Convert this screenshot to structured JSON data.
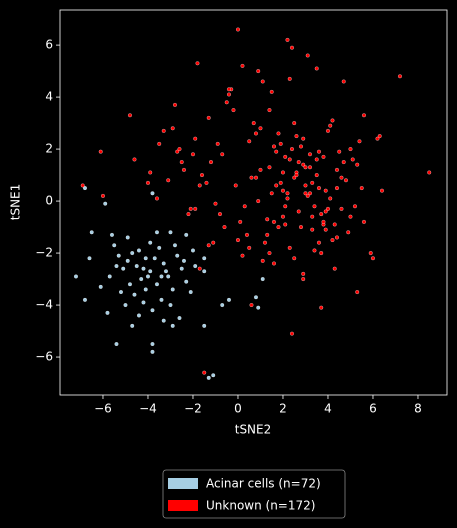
{
  "chart_data": {
    "type": "scatter",
    "xlabel": "tSNE2",
    "ylabel": "tSNE1",
    "xlim": [
      -7.91,
      9.29
    ],
    "ylim": [
      -7.46,
      7.35
    ],
    "xticks": [
      {
        "value": -6,
        "label": "−6"
      },
      {
        "value": -4,
        "label": "−4"
      },
      {
        "value": -2,
        "label": "−2"
      },
      0,
      2,
      4,
      6,
      8
    ],
    "yticks": [
      {
        "value": -6,
        "label": "−6"
      },
      {
        "value": -4,
        "label": "−4"
      },
      {
        "value": -2,
        "label": "−2"
      },
      0,
      2,
      4,
      6
    ],
    "legend": "bottom",
    "series": [
      {
        "name": "Acinar cells (n=72)",
        "color": "#a6cee3",
        "x": [
          -7.2,
          -6.8,
          -6.8,
          -5.9,
          -6.5,
          -6.6,
          -6.1,
          -5.8,
          -5.4,
          -3.8,
          -3.8,
          -3.8,
          -2.3,
          -1.5,
          -1.5,
          -1.5,
          -0.7,
          -0.4,
          -1.1,
          0.8,
          1.1,
          0.9,
          -4.7,
          -2.9,
          -5.6,
          -5.5,
          -5.3,
          -5.1,
          -4.9,
          -4.7,
          -4.5,
          -4.3,
          -4.1,
          -3.9,
          -3.7,
          -3.5,
          -3.3,
          -3.1,
          -2.9,
          -2.7,
          -2.5,
          -2.3,
          -2.1,
          -4.6,
          -4.2,
          -3.8,
          -3.4,
          -3.0,
          -4.8,
          -5.2,
          -5.0,
          -4.4,
          -3.6,
          -3.2,
          -2.8,
          -2.0,
          -3.9,
          -4.1,
          -3.6,
          -4.4,
          -3.0,
          -2.6,
          -3.3,
          -1.9,
          -5.7,
          -4.9,
          -4.0,
          -3.4,
          -2.4,
          -5.4,
          -1.3,
          -4.2
        ],
        "y": [
          -2.9,
          -3.8,
          0.5,
          -0.1,
          -1.2,
          -2.2,
          -3.3,
          -4.3,
          -5.5,
          0.3,
          -5.5,
          -5.8,
          -1.3,
          -2.2,
          -2.7,
          -4.8,
          -4.0,
          -3.8,
          -6.7,
          -3.7,
          -3.0,
          -4.1,
          -4.8,
          -4.8,
          -1.3,
          -1.7,
          -2.1,
          -2.6,
          -1.4,
          -2.0,
          -2.5,
          -3.0,
          -3.4,
          -2.7,
          -2.2,
          -1.8,
          -2.4,
          -2.9,
          -3.4,
          -2.1,
          -2.6,
          -3.1,
          -3.5,
          -3.6,
          -3.9,
          -4.2,
          -3.8,
          -4.0,
          -3.2,
          -3.5,
          -4.0,
          -4.4,
          -3.2,
          -2.7,
          -1.7,
          -1.9,
          -1.6,
          -2.2,
          -1.2,
          -1.9,
          -1.2,
          -4.5,
          -4.6,
          -2.5,
          -2.9,
          -2.3,
          -2.9,
          -2.9,
          -2.3,
          -2.5,
          -6.8,
          -2.6
        ]
      },
      {
        "name": "Unknown (n=172)",
        "color": "#ff0000",
        "x": [
          -6.9,
          -6.1,
          -6.0,
          8.5,
          7.2,
          0.0,
          2.2,
          2.4,
          3.1,
          -1.8,
          -1.5,
          2.4,
          3.7,
          6.0,
          5.3,
          -4.8,
          -4.6,
          -3.9,
          -3.5,
          -3.1,
          -2.8,
          -2.5,
          -2.2,
          -1.9,
          -1.6,
          -1.3,
          -1.0,
          -0.7,
          -0.4,
          -0.1,
          0.2,
          0.5,
          0.8,
          1.1,
          1.4,
          1.7,
          2.0,
          2.3,
          2.6,
          2.9,
          3.2,
          3.5,
          3.8,
          4.1,
          4.4,
          4.7,
          5.0,
          5.3,
          5.6,
          5.9,
          6.2,
          6.4,
          -4.0,
          -3.3,
          -2.6,
          -1.9,
          -1.2,
          -0.5,
          0.3,
          1.0,
          1.6,
          2.1,
          2.5,
          2.8,
          3.0,
          3.3,
          3.6,
          3.9,
          4.2,
          4.5,
          4.8,
          5.1,
          5.4,
          1.2,
          1.5,
          1.8,
          2.2,
          2.6,
          3.0,
          3.4,
          3.8,
          4.2,
          4.6,
          5.0,
          0.9,
          1.3,
          1.9,
          2.3,
          2.7,
          3.1,
          3.5,
          3.9,
          4.3,
          -0.8,
          -0.2,
          0.4,
          1.0,
          1.6,
          2.0,
          2.4,
          2.8,
          3.2,
          3.6,
          4.0,
          4.4,
          -2.4,
          -1.7,
          -1.1,
          -0.3,
          0.6,
          1.4,
          2.1,
          2.9,
          3.3,
          3.7,
          4.1,
          4.9,
          5.6,
          6.3,
          0.1,
          0.7,
          1.5,
          2.5,
          3.4,
          4.3,
          -3.6,
          -2.9,
          -2.0,
          -1.4,
          -0.6,
          1.8,
          2.7,
          3.5,
          4.6,
          5.2,
          1.1,
          2.0,
          2.9,
          3.8,
          -0.9,
          0.5,
          1.9,
          3.6,
          4.7,
          -2.1,
          -1.3,
          0.2,
          1.4,
          2.6,
          3.3,
          2.3,
          3.0,
          3.9,
          1.7,
          0.8,
          -0.4,
          4.4,
          5.5,
          2.1,
          2.9,
          3.7,
          1.3,
          0.6,
          -1.7,
          0.9,
          2.5,
          3.2,
          1.6,
          2.2,
          4.0,
          -2.7,
          0.0
        ],
        "y": [
          0.6,
          1.9,
          0.2,
          1.1,
          4.8,
          6.6,
          6.2,
          5.9,
          5.6,
          5.3,
          -6.6,
          -5.1,
          -4.1,
          -2.2,
          -3.5,
          3.3,
          1.6,
          1.1,
          2.2,
          0.8,
          3.7,
          1.5,
          -0.5,
          2.4,
          1.0,
          3.2,
          -0.1,
          1.8,
          4.1,
          0.6,
          5.2,
          2.3,
          0.9,
          4.6,
          3.5,
          1.9,
          1.1,
          4.7,
          2.5,
          1.4,
          0.3,
          5.1,
          1.7,
          2.9,
          0.5,
          4.6,
          -0.6,
          1.4,
          3.3,
          -2.0,
          2.4,
          0.4,
          0.7,
          2.7,
          2.0,
          -0.3,
          1.5,
          3.8,
          -0.2,
          1.2,
          -0.8,
          1.7,
          0.9,
          2.1,
          1.3,
          -1.1,
          0.5,
          -0.4,
          3.1,
          1.9,
          0.8,
          1.6,
          2.3,
          -1.6,
          0.3,
          2.6,
          0.1,
          1.1,
          0.6,
          -0.2,
          -0.9,
          -1.5,
          -0.3,
          2.0,
          0.0,
          -0.7,
          2.2,
          -1.8,
          1.5,
          0.2,
          1.0,
          0.4,
          -0.9,
          -0.5,
          3.5,
          -1.3,
          2.8,
          -2.4,
          -0.6,
          2.0,
          -1.0,
          1.8,
          -1.6,
          2.7,
          1.2,
          1.2,
          0.6,
          -1.6,
          4.3,
          0.9,
          1.3,
          -0.2,
          -3.0,
          0.7,
          -0.5,
          0.1,
          -1.2,
          -0.8,
          2.5,
          -0.8,
          3.0,
          4.2,
          -2.2,
          -1.9,
          -2.6,
          0.1,
          2.8,
          1.8,
          0.7,
          -1.0,
          -1.0,
          -0.4,
          1.6,
          0.9,
          -0.2,
          -2.3,
          0.4,
          2.4,
          -0.8,
          2.2,
          -1.8,
          0.7,
          1.9,
          1.5,
          -0.3,
          -1.7,
          -2.1,
          -2.0,
          1.0,
          -0.6,
          1.6,
          0.3,
          -1.1,
          0.6,
          2.6,
          4.3,
          -1.4,
          0.5,
          -0.9,
          -2.8,
          -2.0,
          -1.3,
          -4.0,
          -2.6,
          5.0,
          3.0,
          1.3,
          2.1,
          0.3,
          -0.3,
          1.9,
          -1.5
        ]
      }
    ]
  }
}
